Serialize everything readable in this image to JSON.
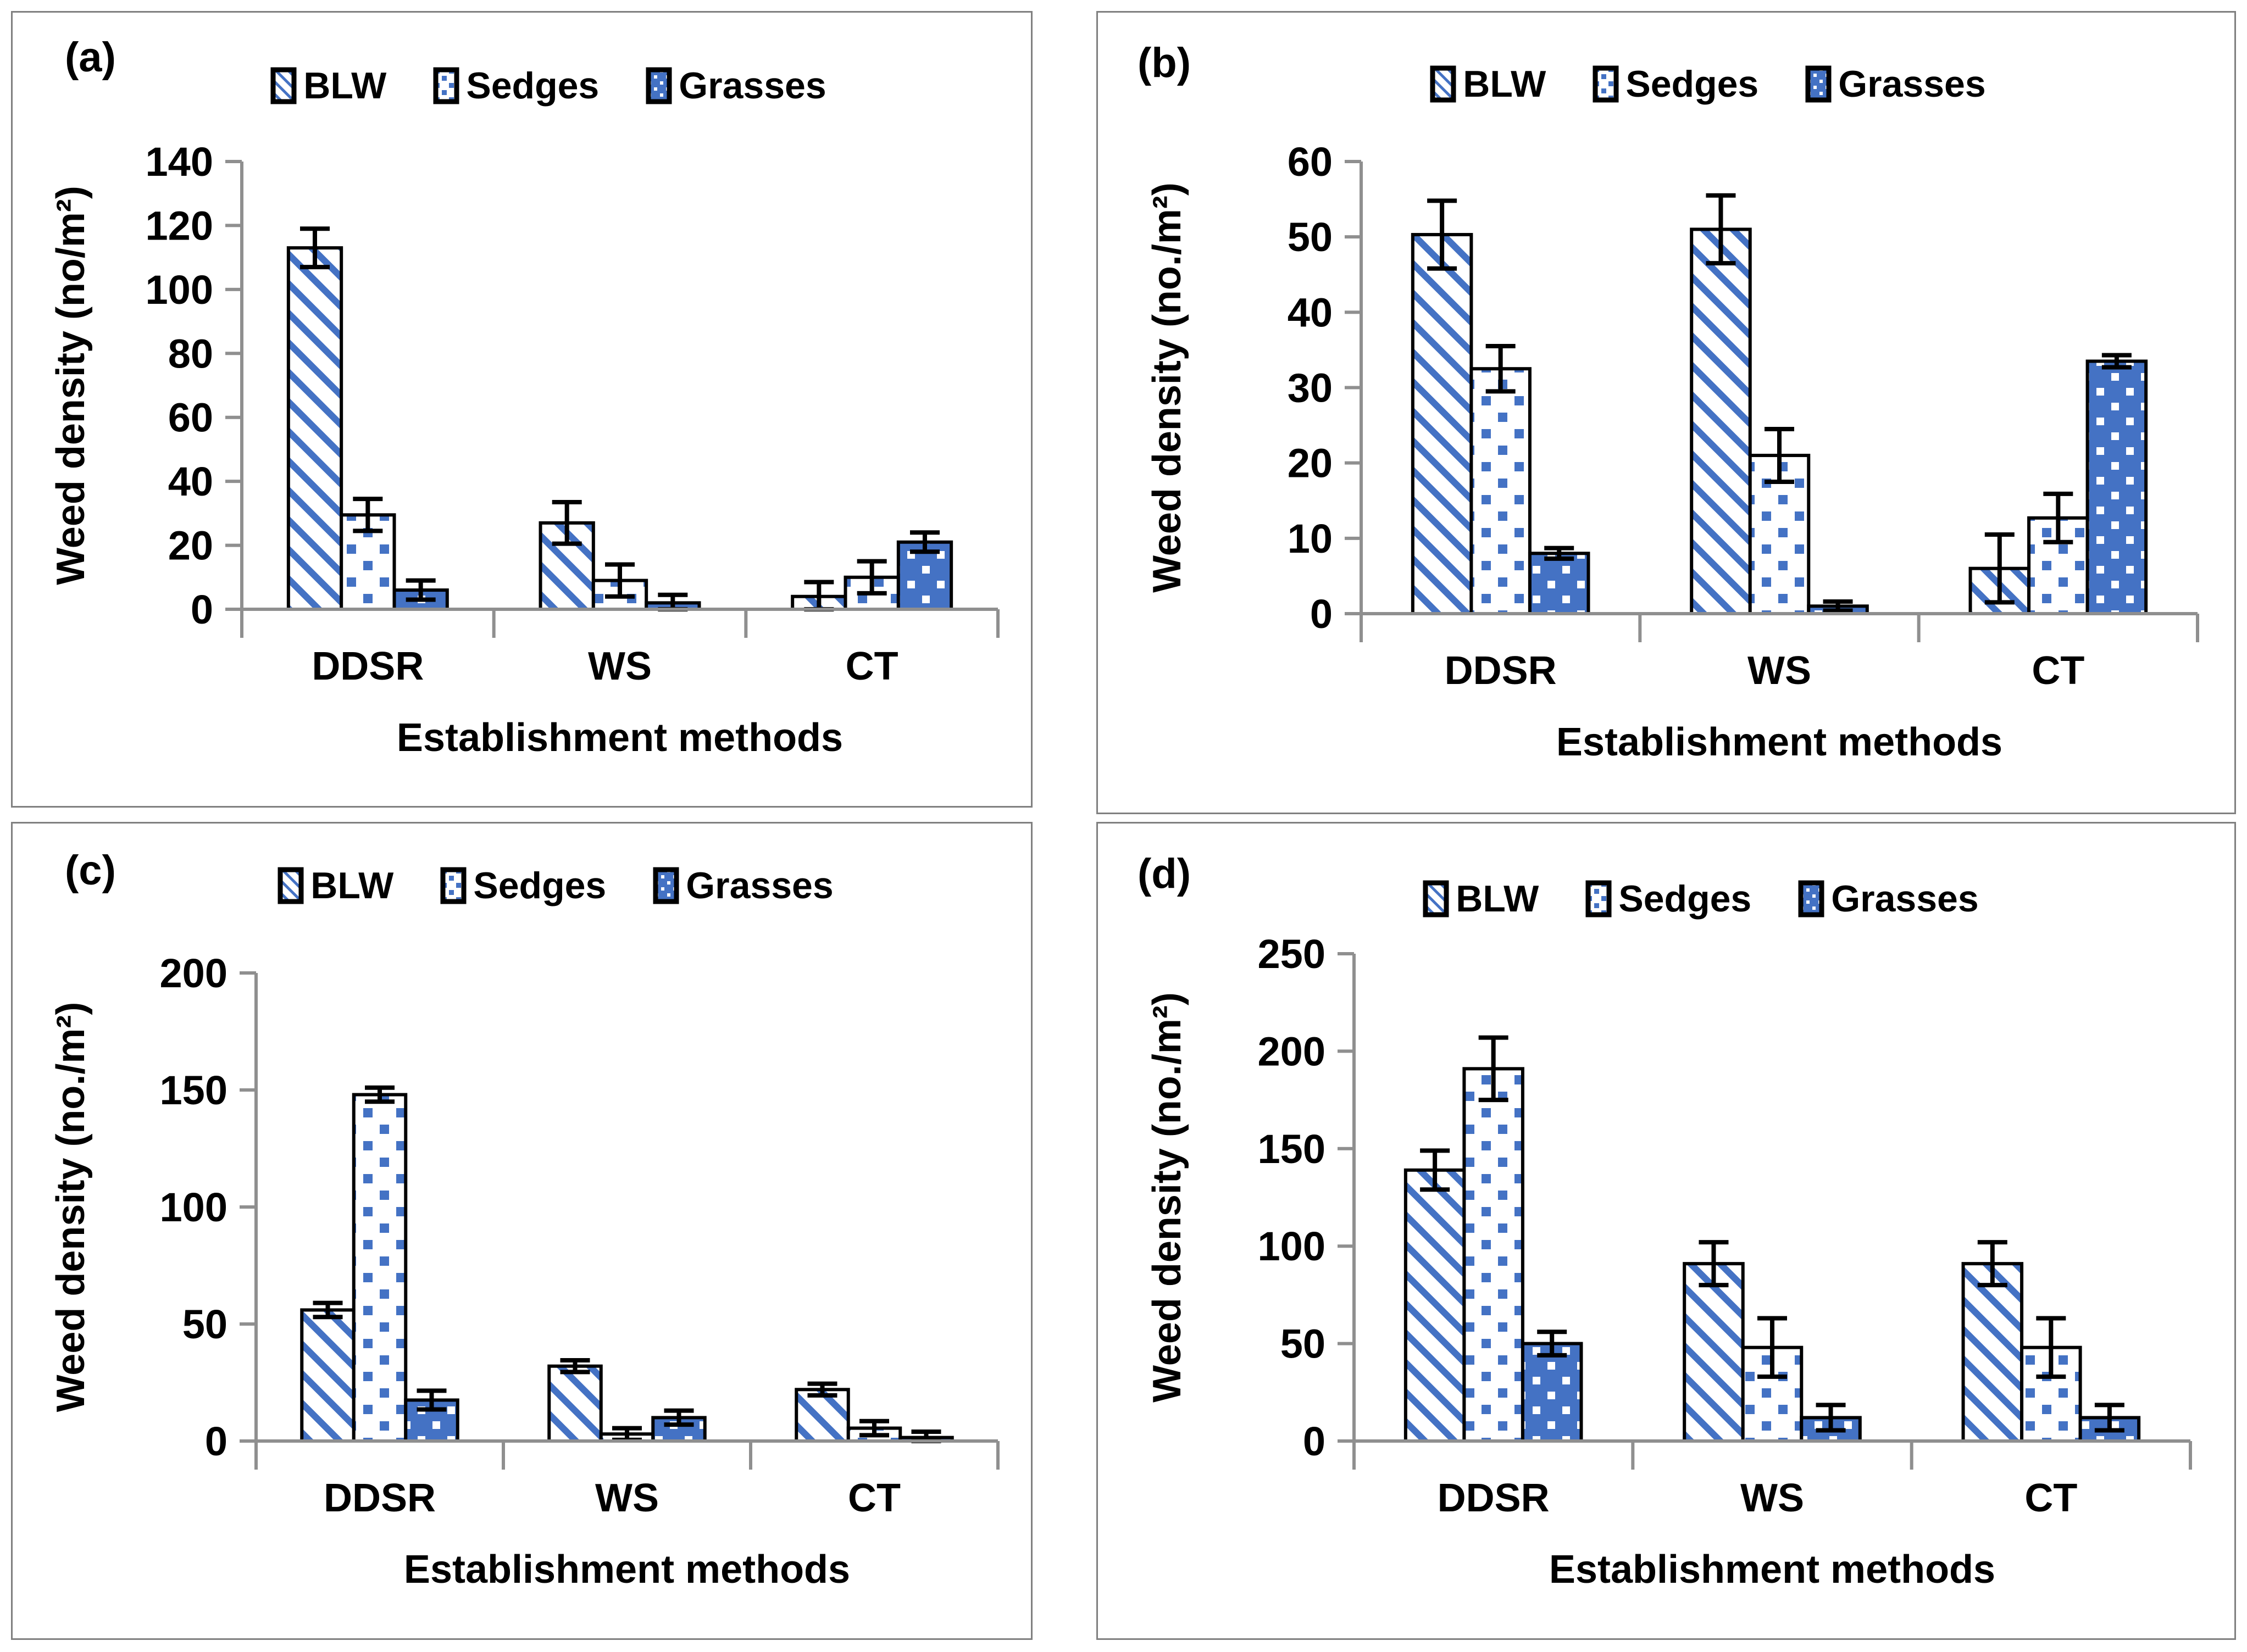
{
  "page": {
    "background": "#ffffff"
  },
  "colors": {
    "accent_blue": "#4472C4",
    "pattern_bg": "#ffffff",
    "axis_gray": "#8f8f8f",
    "panel_border": "#808080",
    "bar_outline": "#000000",
    "error_bar": "#000000",
    "text": "#000000"
  },
  "legend": {
    "items": [
      {
        "name": "BLW",
        "pattern": "diagonal-stripes"
      },
      {
        "name": "Sedges",
        "pattern": "blue-squares-on-white"
      },
      {
        "name": "Grasses",
        "pattern": "white-squares-on-blue"
      }
    ]
  },
  "chart_data": [
    {
      "id": "a",
      "label": "(a)",
      "type": "bar",
      "categories": [
        "DDSR",
        "WS",
        "CT"
      ],
      "xlabel": "Establishment methods",
      "ylabel": "Weed density (no/m²)",
      "ylim": [
        0,
        140
      ],
      "ytick_step": 20,
      "grid": false,
      "legend_position": "top",
      "series": [
        {
          "name": "BLW",
          "values": [
            113,
            27,
            4
          ],
          "errors": [
            6,
            6.5,
            4.5
          ]
        },
        {
          "name": "Sedges",
          "values": [
            29.5,
            9,
            10
          ],
          "errors": [
            5,
            5,
            5
          ]
        },
        {
          "name": "Grasses",
          "values": [
            6,
            2,
            21
          ],
          "errors": [
            3,
            2.5,
            3
          ]
        }
      ]
    },
    {
      "id": "b",
      "label": "(b)",
      "type": "bar",
      "categories": [
        "DDSR",
        "WS",
        "CT"
      ],
      "xlabel": "Establishment methods",
      "ylabel": "Weed density (no./m²)",
      "ylim": [
        0,
        60
      ],
      "ytick_step": 10,
      "grid": false,
      "legend_position": "top",
      "series": [
        {
          "name": "BLW",
          "values": [
            50.3,
            51,
            6
          ],
          "errors": [
            4.5,
            4.5,
            4.5
          ]
        },
        {
          "name": "Sedges",
          "values": [
            32.5,
            21,
            12.7
          ],
          "errors": [
            3,
            3.5,
            3.2
          ]
        },
        {
          "name": "Grasses",
          "values": [
            8,
            1,
            33.5
          ],
          "errors": [
            0.7,
            0.6,
            0.8
          ]
        }
      ]
    },
    {
      "id": "c",
      "label": "(c)",
      "type": "bar",
      "categories": [
        "DDSR",
        "WS",
        "CT"
      ],
      "xlabel": "Establishment methods",
      "ylabel": "Weed density (no./m²)",
      "ylim": [
        0,
        200
      ],
      "ytick_step": 50,
      "grid": false,
      "legend_position": "top",
      "series": [
        {
          "name": "BLW",
          "values": [
            56,
            32,
            22
          ],
          "errors": [
            3,
            2.5,
            2.5
          ]
        },
        {
          "name": "Sedges",
          "values": [
            148,
            3,
            5.5
          ],
          "errors": [
            3,
            2.5,
            3
          ]
        },
        {
          "name": "Grasses",
          "values": [
            17.5,
            10,
            1.5
          ],
          "errors": [
            4,
            3,
            2.5
          ]
        }
      ]
    },
    {
      "id": "d",
      "label": "(d)",
      "type": "bar",
      "categories": [
        "DDSR",
        "WS",
        "CT"
      ],
      "xlabel": "Establishment methods",
      "ylabel": "Weed density (no./m²)",
      "ylim": [
        0,
        250
      ],
      "ytick_step": 50,
      "grid": false,
      "legend_position": "top",
      "series": [
        {
          "name": "BLW",
          "values": [
            139,
            91,
            91
          ],
          "errors": [
            10,
            11,
            11
          ]
        },
        {
          "name": "Sedges",
          "values": [
            191,
            48,
            48
          ],
          "errors": [
            16,
            15,
            15
          ]
        },
        {
          "name": "Grasses",
          "values": [
            50,
            12,
            12
          ],
          "errors": [
            6,
            6.5,
            6.5
          ]
        }
      ]
    }
  ]
}
